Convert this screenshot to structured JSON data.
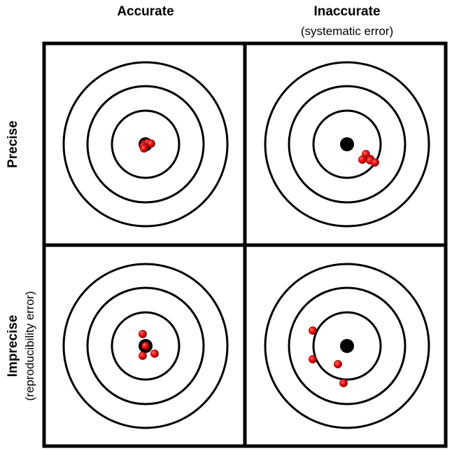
{
  "columns": [
    {
      "title": "Accurate",
      "subtitle": ""
    },
    {
      "title": "Inaccurate",
      "subtitle": "(systematic error)"
    }
  ],
  "rows": [
    {
      "title": "Precise",
      "subtitle": ""
    },
    {
      "title": "Imprecise",
      "subtitle": "(reproducibility error)"
    }
  ],
  "colors": {
    "frame": "#000000",
    "ring": "#000000",
    "bullseye": "#000000",
    "hit": "#e60000",
    "hit_edge": "#8a0000",
    "background": "#ffffff"
  },
  "panels": [
    {
      "name": "accurate-precise",
      "row": 0,
      "col": 0,
      "hits": [
        [
          -2,
          0
        ],
        [
          1,
          -1
        ],
        [
          4,
          -2
        ],
        [
          -3,
          3
        ],
        [
          8,
          -1
        ],
        [
          -2,
          6
        ]
      ]
    },
    {
      "name": "inaccurate-precise",
      "row": 0,
      "col": 1,
      "hits": [
        [
          27,
          14
        ],
        [
          33,
          21
        ],
        [
          22,
          22
        ],
        [
          33,
          23
        ],
        [
          40,
          26
        ]
      ]
    },
    {
      "name": "accurate-imprecise",
      "row": 1,
      "col": 0,
      "hits": [
        [
          -4,
          -17
        ],
        [
          0,
          0
        ],
        [
          13,
          11
        ],
        [
          -4,
          14
        ]
      ]
    },
    {
      "name": "inaccurate-imprecise",
      "row": 1,
      "col": 1,
      "hits": [
        [
          -49,
          -22
        ],
        [
          -49,
          19
        ],
        [
          -13,
          26
        ],
        [
          -5,
          53
        ]
      ]
    }
  ]
}
